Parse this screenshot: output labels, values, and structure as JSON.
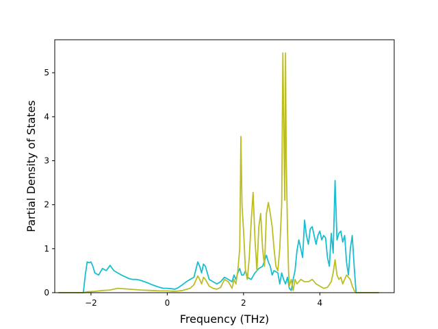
{
  "chart_data": {
    "type": "line",
    "title": "",
    "xlabel": "Frequency (THz)",
    "ylabel": "Partial Density of States",
    "xlim": [
      -2.95,
      5.95
    ],
    "ylim": [
      0,
      5.75
    ],
    "xticks": [
      -2,
      0,
      2,
      4
    ],
    "xtick_labels": [
      "−2",
      "0",
      "2",
      "4"
    ],
    "yticks": [
      0,
      1,
      2,
      3,
      4,
      5
    ],
    "ytick_labels": [
      "0",
      "1",
      "2",
      "3",
      "4",
      "5"
    ],
    "grid": false,
    "legend": "none",
    "series": [
      {
        "color": "#17becf",
        "x": [
          -2.85,
          -2.2,
          -2.15,
          -2.1,
          -2.05,
          -2.0,
          -1.95,
          -1.9,
          -1.8,
          -1.7,
          -1.6,
          -1.5,
          -1.4,
          -1.3,
          -1.2,
          -1.1,
          -1.0,
          -0.9,
          -0.8,
          -0.7,
          -0.6,
          -0.5,
          -0.4,
          -0.3,
          -0.2,
          -0.1,
          0.0,
          0.1,
          0.2,
          0.3,
          0.4,
          0.5,
          0.6,
          0.7,
          0.8,
          0.85,
          0.9,
          0.95,
          1.0,
          1.05,
          1.1,
          1.2,
          1.3,
          1.4,
          1.5,
          1.6,
          1.7,
          1.75,
          1.8,
          1.85,
          1.9,
          1.95,
          2.0,
          2.05,
          2.1,
          2.2,
          2.3,
          2.4,
          2.5,
          2.6,
          2.65,
          2.7,
          2.75,
          2.8,
          2.9,
          2.95,
          3.0,
          3.05,
          3.1,
          3.15,
          3.2,
          3.25,
          3.3,
          3.35,
          3.4,
          3.45,
          3.5,
          3.55,
          3.6,
          3.65,
          3.7,
          3.75,
          3.8,
          3.85,
          3.9,
          3.95,
          4.0,
          4.05,
          4.1,
          4.15,
          4.2,
          4.25,
          4.3,
          4.35,
          4.4,
          4.45,
          4.5,
          4.55,
          4.6,
          4.65,
          4.7,
          4.75,
          4.8,
          4.85,
          4.9,
          4.95,
          5.0,
          5.05,
          5.55
        ],
        "y": [
          0.0,
          0.0,
          0.4,
          0.7,
          0.68,
          0.7,
          0.6,
          0.45,
          0.4,
          0.55,
          0.5,
          0.62,
          0.5,
          0.45,
          0.4,
          0.36,
          0.32,
          0.3,
          0.3,
          0.28,
          0.25,
          0.22,
          0.18,
          0.15,
          0.12,
          0.1,
          0.1,
          0.09,
          0.08,
          0.12,
          0.18,
          0.25,
          0.3,
          0.35,
          0.7,
          0.6,
          0.45,
          0.65,
          0.6,
          0.45,
          0.3,
          0.25,
          0.2,
          0.25,
          0.35,
          0.3,
          0.25,
          0.4,
          0.3,
          0.45,
          0.55,
          0.4,
          0.4,
          0.5,
          0.35,
          0.3,
          0.45,
          0.55,
          0.6,
          0.85,
          0.7,
          0.6,
          0.4,
          0.5,
          0.45,
          0.2,
          0.45,
          0.3,
          0.2,
          0.35,
          0.1,
          0.05,
          0.3,
          0.5,
          0.95,
          1.2,
          1.0,
          0.8,
          1.65,
          1.3,
          1.1,
          1.45,
          1.5,
          1.3,
          1.1,
          1.3,
          1.4,
          1.2,
          1.3,
          1.25,
          0.8,
          0.6,
          1.35,
          0.9,
          2.55,
          1.2,
          1.35,
          1.4,
          1.15,
          1.3,
          0.7,
          0.4,
          1.0,
          1.3,
          0.6,
          0.0,
          0.0,
          0.0,
          0.0
        ]
      },
      {
        "color": "#bcbd22",
        "x": [
          -2.85,
          -2.2,
          -2.1,
          -1.9,
          -1.7,
          -1.5,
          -1.3,
          -1.0,
          -0.7,
          -0.4,
          -0.2,
          0.0,
          0.2,
          0.4,
          0.6,
          0.7,
          0.8,
          0.85,
          0.9,
          0.95,
          1.0,
          1.1,
          1.2,
          1.3,
          1.4,
          1.5,
          1.6,
          1.7,
          1.75,
          1.8,
          1.85,
          1.9,
          1.93,
          1.96,
          2.0,
          2.05,
          2.1,
          2.15,
          2.2,
          2.25,
          2.3,
          2.35,
          2.4,
          2.45,
          2.5,
          2.55,
          2.6,
          2.65,
          2.7,
          2.75,
          2.8,
          2.85,
          2.9,
          2.95,
          3.0,
          3.03,
          3.06,
          3.08,
          3.1,
          3.12,
          3.15,
          3.18,
          3.2,
          3.25,
          3.3,
          3.35,
          3.4,
          3.5,
          3.6,
          3.7,
          3.8,
          3.9,
          4.0,
          4.1,
          4.2,
          4.3,
          4.35,
          4.4,
          4.45,
          4.5,
          4.55,
          4.6,
          4.7,
          4.8,
          4.85,
          4.9,
          4.95,
          5.05,
          5.55
        ],
        "y": [
          0.0,
          0.0,
          0.02,
          0.03,
          0.05,
          0.06,
          0.1,
          0.08,
          0.06,
          0.05,
          0.04,
          0.04,
          0.03,
          0.05,
          0.1,
          0.18,
          0.38,
          0.3,
          0.2,
          0.35,
          0.3,
          0.15,
          0.1,
          0.08,
          0.12,
          0.3,
          0.25,
          0.1,
          0.3,
          0.2,
          0.5,
          1.0,
          3.55,
          2.0,
          1.4,
          0.5,
          0.3,
          0.8,
          1.6,
          2.28,
          1.2,
          0.5,
          1.5,
          1.8,
          1.0,
          0.6,
          1.8,
          2.05,
          1.8,
          1.5,
          1.0,
          0.6,
          0.5,
          1.0,
          2.0,
          5.45,
          3.5,
          2.1,
          5.45,
          3.0,
          1.5,
          0.5,
          0.15,
          0.3,
          0.05,
          0.3,
          0.2,
          0.3,
          0.25,
          0.25,
          0.3,
          0.2,
          0.15,
          0.1,
          0.12,
          0.25,
          0.45,
          0.75,
          0.4,
          0.3,
          0.35,
          0.2,
          0.4,
          0.3,
          0.15,
          0.05,
          0.0,
          0.0,
          0.0
        ]
      }
    ]
  }
}
